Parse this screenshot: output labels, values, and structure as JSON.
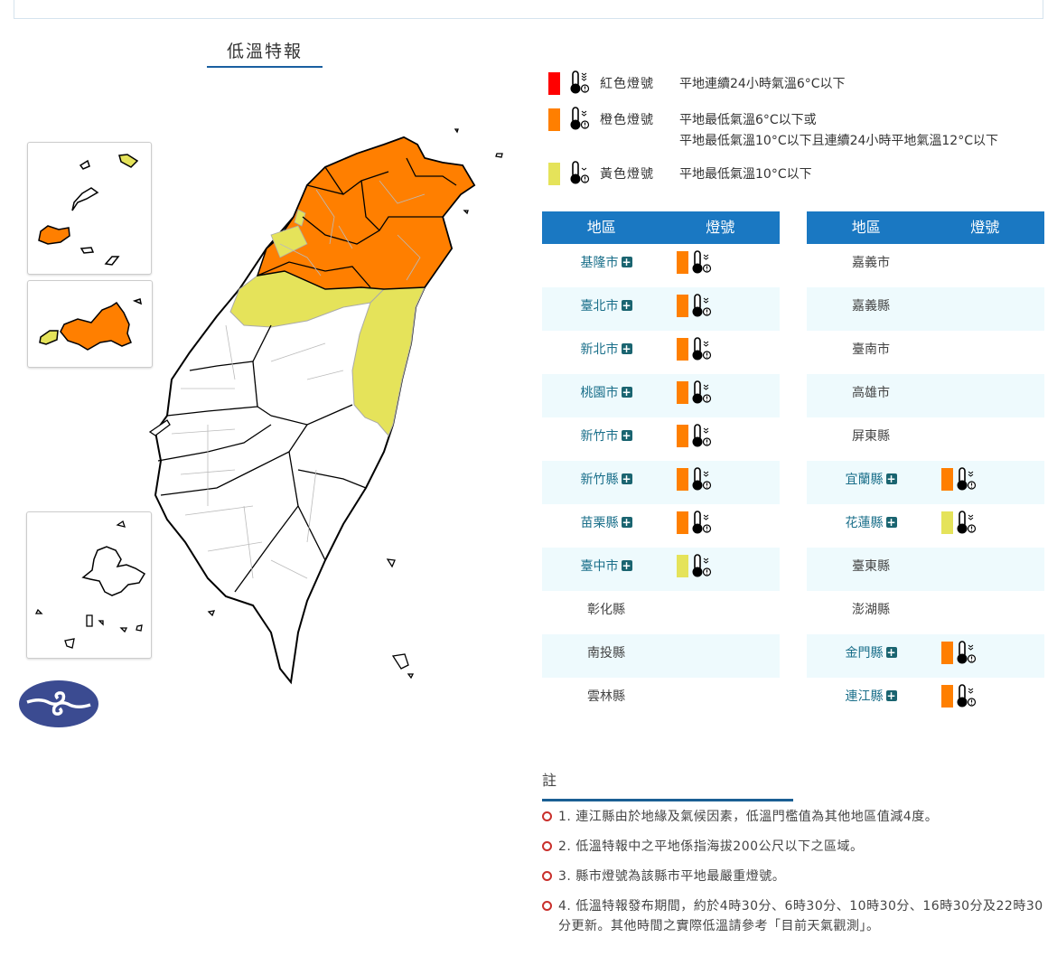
{
  "map": {
    "title": "低溫特報",
    "colors": {
      "red": "#ff0000",
      "orange": "#ff7f00",
      "yellow": "#e5e35a",
      "none": "#ffffff"
    }
  },
  "logo": {
    "name": "central-weather-administration-logo",
    "color": "#3b4b91"
  },
  "legend": [
    {
      "name": "紅色燈號",
      "color": "#ff0000",
      "desc": [
        "平地連續24小時氣溫6°C以下"
      ],
      "icon": "thermometer-low-temp-icon"
    },
    {
      "name": "橙色燈號",
      "color": "#ff7f00",
      "desc": [
        "平地最低氣溫6°C以下或",
        "平地最低氣溫10°C以下且連續24小時平地氣溫12°C以下"
      ],
      "icon": "thermometer-low-temp-icon"
    },
    {
      "name": "黃色燈號",
      "color": "#e5e35a",
      "desc": [
        "平地最低氣溫10°C以下"
      ],
      "icon": "thermometer-low-temp-icon"
    }
  ],
  "table": {
    "headers": {
      "region": "地區",
      "signal": "燈號"
    },
    "left": [
      {
        "region": "基隆市",
        "expandable": true,
        "signal": "orange"
      },
      {
        "region": "臺北市",
        "expandable": true,
        "signal": "orange"
      },
      {
        "region": "新北市",
        "expandable": true,
        "signal": "orange"
      },
      {
        "region": "桃園市",
        "expandable": true,
        "signal": "orange"
      },
      {
        "region": "新竹市",
        "expandable": true,
        "signal": "orange"
      },
      {
        "region": "新竹縣",
        "expandable": true,
        "signal": "orange"
      },
      {
        "region": "苗栗縣",
        "expandable": true,
        "signal": "orange"
      },
      {
        "region": "臺中市",
        "expandable": true,
        "signal": "yellow"
      },
      {
        "region": "彰化縣",
        "expandable": false,
        "signal": ""
      },
      {
        "region": "南投縣",
        "expandable": false,
        "signal": ""
      },
      {
        "region": "雲林縣",
        "expandable": false,
        "signal": ""
      }
    ],
    "right": [
      {
        "region": "嘉義市",
        "expandable": false,
        "signal": ""
      },
      {
        "region": "嘉義縣",
        "expandable": false,
        "signal": ""
      },
      {
        "region": "臺南市",
        "expandable": false,
        "signal": ""
      },
      {
        "region": "高雄市",
        "expandable": false,
        "signal": ""
      },
      {
        "region": "屏東縣",
        "expandable": false,
        "signal": ""
      },
      {
        "region": "宜蘭縣",
        "expandable": true,
        "signal": "orange"
      },
      {
        "region": "花蓮縣",
        "expandable": true,
        "signal": "yellow"
      },
      {
        "region": "臺東縣",
        "expandable": false,
        "signal": ""
      },
      {
        "region": "澎湖縣",
        "expandable": false,
        "signal": ""
      },
      {
        "region": "金門縣",
        "expandable": true,
        "signal": "orange"
      },
      {
        "region": "連江縣",
        "expandable": true,
        "signal": "orange"
      }
    ]
  },
  "notes": {
    "title": "註",
    "items": [
      "1. 連江縣由於地緣及氣候因素，低溫門檻值為其他地區值減4度。",
      "2. 低溫特報中之平地係指海拔200公尺以下之區域。",
      "3. 縣市燈號為該縣市平地最嚴重燈號。",
      "4. 低溫特報發布期間，約於4時30分、6時30分、10時30分、16時30分及22時30分更新。其他時間之實際低溫請參考「目前天氣觀測」。"
    ]
  }
}
